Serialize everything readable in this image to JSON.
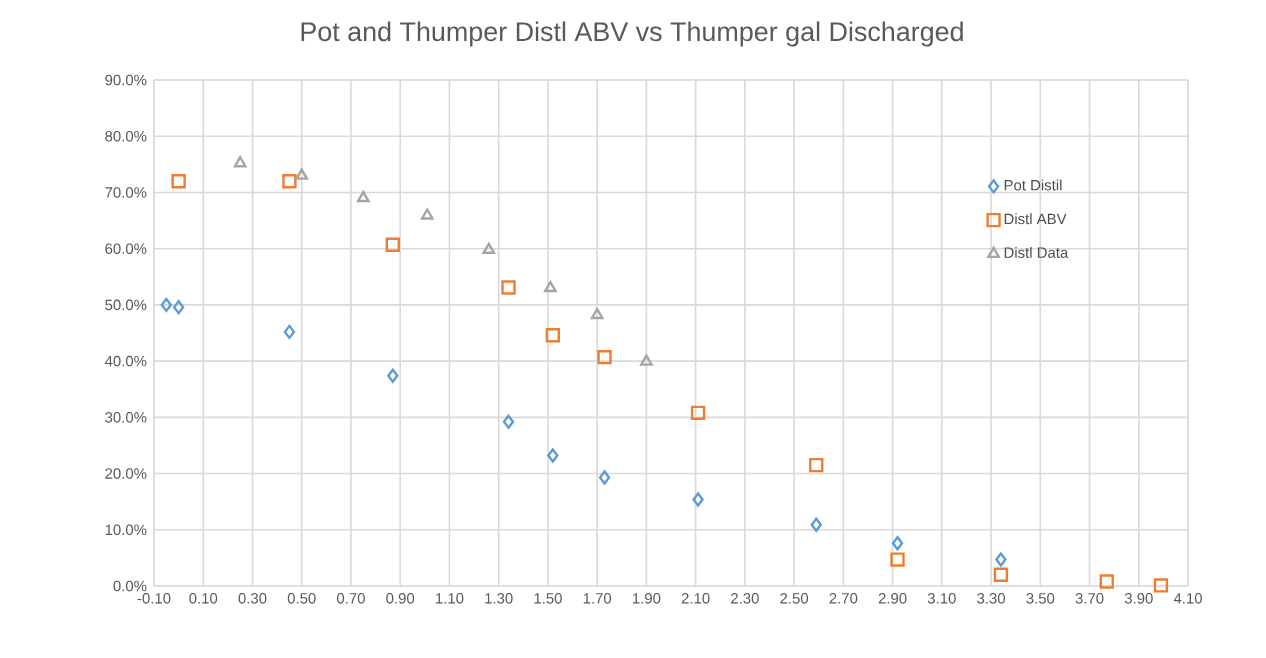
{
  "chart_data": {
    "type": "scatter",
    "title": "Pot and Thumper Distl ABV vs Thumper gal  Discharged",
    "xlim": [
      -0.1,
      4.1
    ],
    "xticks": [
      {
        "value": -0.1,
        "label": "-0.10"
      },
      {
        "value": 0.1,
        "label": "0.10"
      },
      {
        "value": 0.3,
        "label": "0.30"
      },
      {
        "value": 0.5,
        "label": "0.50"
      },
      {
        "value": 0.7,
        "label": "0.70"
      },
      {
        "value": 0.9,
        "label": "0.90"
      },
      {
        "value": 1.1,
        "label": "1.10"
      },
      {
        "value": 1.3,
        "label": "1.30"
      },
      {
        "value": 1.5,
        "label": "1.50"
      },
      {
        "value": 1.7,
        "label": "1.70"
      },
      {
        "value": 1.9,
        "label": "1.90"
      },
      {
        "value": 2.1,
        "label": "2.10"
      },
      {
        "value": 2.3,
        "label": "2.30"
      },
      {
        "value": 2.5,
        "label": "2.50"
      },
      {
        "value": 2.7,
        "label": "2.70"
      },
      {
        "value": 2.9,
        "label": "2.90"
      },
      {
        "value": 3.1,
        "label": "3.10"
      },
      {
        "value": 3.3,
        "label": "3.30"
      },
      {
        "value": 3.5,
        "label": "3.50"
      },
      {
        "value": 3.7,
        "label": "3.70"
      },
      {
        "value": 3.9,
        "label": "3.90"
      },
      {
        "value": 4.1,
        "label": "4.10"
      }
    ],
    "ylim": [
      0,
      90
    ],
    "yticks": [
      {
        "value": 0,
        "label": "0.0%"
      },
      {
        "value": 10,
        "label": "10.0%"
      },
      {
        "value": 20,
        "label": "20.0%"
      },
      {
        "value": 30,
        "label": "30.0%"
      },
      {
        "value": 40,
        "label": "40.0%"
      },
      {
        "value": 50,
        "label": "50.0%"
      },
      {
        "value": 60,
        "label": "60.0%"
      },
      {
        "value": 70,
        "label": "70.0%"
      },
      {
        "value": 80,
        "label": "80.0%"
      },
      {
        "value": 90,
        "label": "90.0%"
      }
    ],
    "grid": true,
    "legend": "right",
    "series": [
      {
        "name": "Pot Distil",
        "color": "#5b9bd5",
        "marker": "diamond",
        "x": [
          -0.05,
          0.0,
          0.45,
          0.87,
          1.34,
          1.52,
          1.73,
          2.11,
          2.59,
          2.92,
          3.34
        ],
        "values": [
          50.0,
          49.6,
          45.2,
          37.4,
          29.2,
          23.2,
          19.3,
          15.4,
          10.9,
          7.6,
          4.7
        ]
      },
      {
        "name": "Distl ABV",
        "color": "#ed7d31",
        "marker": "square",
        "x": [
          0.0,
          0.45,
          0.87,
          1.34,
          1.52,
          1.73,
          2.11,
          2.59,
          2.92,
          3.34,
          3.77,
          3.99
        ],
        "values": [
          72.0,
          72.0,
          60.7,
          53.1,
          44.6,
          40.7,
          30.8,
          21.5,
          4.7,
          2.0,
          0.8,
          0.1
        ]
      },
      {
        "name": "Distl Data",
        "color": "#a5a5a5",
        "marker": "triangle",
        "x": [
          0.25,
          0.5,
          0.75,
          1.01,
          1.26,
          1.51,
          1.7,
          1.9
        ],
        "values": [
          75.2,
          73.0,
          69.0,
          65.9,
          59.8,
          53.0,
          48.2,
          39.9
        ]
      }
    ]
  }
}
